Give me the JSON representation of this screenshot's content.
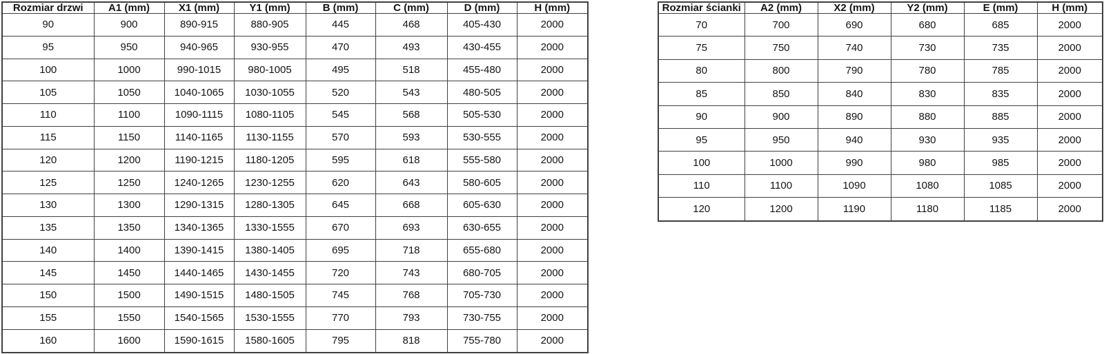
{
  "colors": {
    "background": "#ffffff",
    "border": "#3f3f3f",
    "text": "#141414"
  },
  "doors_table": {
    "name": "door-sizes",
    "headers": [
      "Rozmiar drzwi",
      "A1 (mm)",
      "X1 (mm)",
      "Y1 (mm)",
      "B (mm)",
      "C (mm)",
      "D (mm)",
      "H (mm)"
    ],
    "rows": [
      [
        "90",
        "900",
        "890-915",
        "880-905",
        "445",
        "468",
        "405-430",
        "2000"
      ],
      [
        "95",
        "950",
        "940-965",
        "930-955",
        "470",
        "493",
        "430-455",
        "2000"
      ],
      [
        "100",
        "1000",
        "990-1015",
        "980-1005",
        "495",
        "518",
        "455-480",
        "2000"
      ],
      [
        "105",
        "1050",
        "1040-1065",
        "1030-1055",
        "520",
        "543",
        "480-505",
        "2000"
      ],
      [
        "110",
        "1100",
        "1090-1115",
        "1080-1105",
        "545",
        "568",
        "505-530",
        "2000"
      ],
      [
        "115",
        "1150",
        "1140-1165",
        "1130-1155",
        "570",
        "593",
        "530-555",
        "2000"
      ],
      [
        "120",
        "1200",
        "1190-1215",
        "1180-1205",
        "595",
        "618",
        "555-580",
        "2000"
      ],
      [
        "125",
        "1250",
        "1240-1265",
        "1230-1255",
        "620",
        "643",
        "580-605",
        "2000"
      ],
      [
        "130",
        "1300",
        "1290-1315",
        "1280-1305",
        "645",
        "668",
        "605-630",
        "2000"
      ],
      [
        "135",
        "1350",
        "1340-1365",
        "1330-1555",
        "670",
        "693",
        "630-655",
        "2000"
      ],
      [
        "140",
        "1400",
        "1390-1415",
        "1380-1405",
        "695",
        "718",
        "655-680",
        "2000"
      ],
      [
        "145",
        "1450",
        "1440-1465",
        "1430-1455",
        "720",
        "743",
        "680-705",
        "2000"
      ],
      [
        "150",
        "1500",
        "1490-1515",
        "1480-1505",
        "745",
        "768",
        "705-730",
        "2000"
      ],
      [
        "155",
        "1550",
        "1540-1565",
        "1530-1555",
        "770",
        "793",
        "730-755",
        "2000"
      ],
      [
        "160",
        "1600",
        "1590-1615",
        "1580-1605",
        "795",
        "818",
        "755-780",
        "2000"
      ]
    ]
  },
  "walls_table": {
    "name": "wall-sizes",
    "headers": [
      "Rozmiar ścianki",
      "A2 (mm)",
      "X2 (mm)",
      "Y2 (mm)",
      "E (mm)",
      "H (mm)"
    ],
    "rows": [
      [
        "70",
        "700",
        "690",
        "680",
        "685",
        "2000"
      ],
      [
        "75",
        "750",
        "740",
        "730",
        "735",
        "2000"
      ],
      [
        "80",
        "800",
        "790",
        "780",
        "785",
        "2000"
      ],
      [
        "85",
        "850",
        "840",
        "830",
        "835",
        "2000"
      ],
      [
        "90",
        "900",
        "890",
        "880",
        "885",
        "2000"
      ],
      [
        "95",
        "950",
        "940",
        "930",
        "935",
        "2000"
      ],
      [
        "100",
        "1000",
        "990",
        "980",
        "985",
        "2000"
      ],
      [
        "110",
        "1100",
        "1090",
        "1080",
        "1085",
        "2000"
      ],
      [
        "120",
        "1200",
        "1190",
        "1180",
        "1185",
        "2000"
      ]
    ]
  }
}
